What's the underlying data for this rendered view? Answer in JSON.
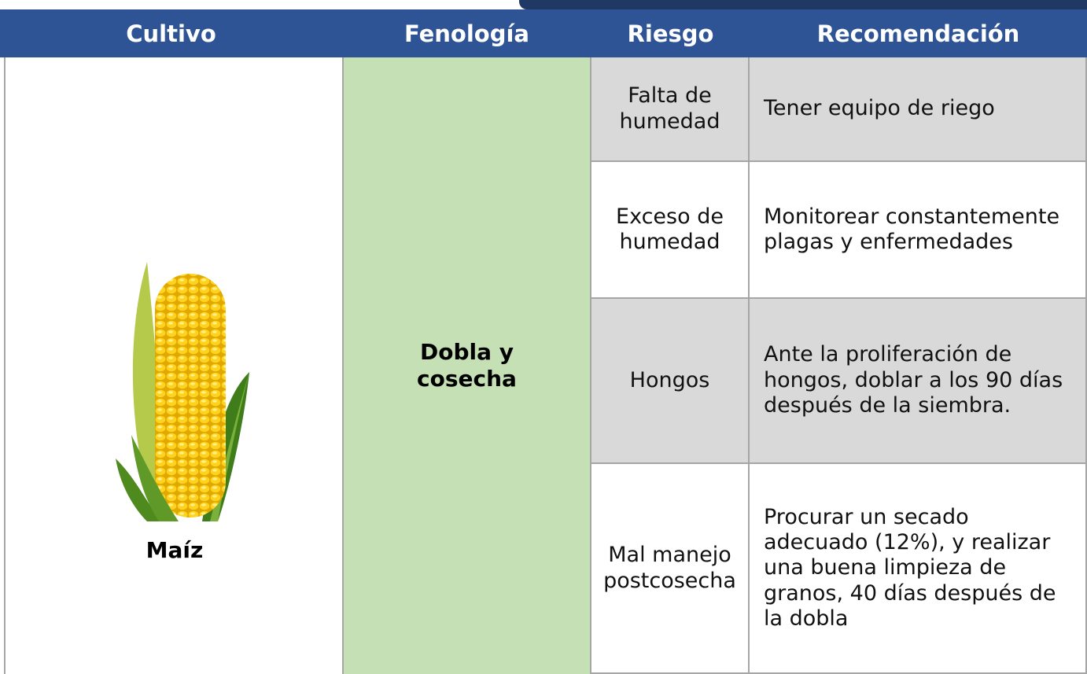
{
  "header": {
    "columns": [
      "Cultivo",
      "Fenología",
      "Riesgo",
      "Recomendación"
    ]
  },
  "table": {
    "crop": "Maíz",
    "phenology": "Dobla y cosecha",
    "rows": [
      [
        "Falta de humedad",
        "Tener equipo de riego"
      ],
      [
        "Exceso de humedad",
        "Monitorear constantemente plagas y enfermedades"
      ],
      [
        "Hongos",
        "Ante la proliferación de hongos, doblar a los 90 días después de la siembra."
      ],
      [
        "Mal manejo postcosecha",
        "Procurar un secado adecuado (12%), y realizar una buena limpieza de granos, 40 días después de la dobla"
      ]
    ]
  }
}
